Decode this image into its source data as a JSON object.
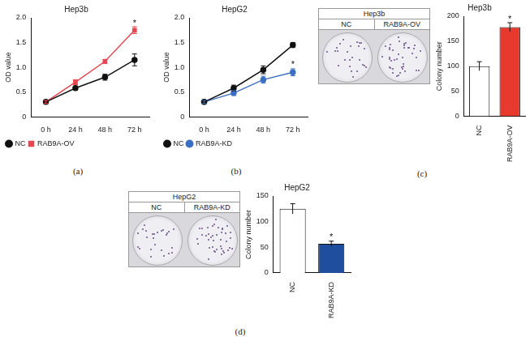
{
  "panel_labels": [
    "(a)",
    "(b)",
    "(c)",
    "(d)"
  ],
  "images": [
    {
      "title": "Hep3b",
      "labels": [
        "NC",
        "RAB9A-OV"
      ]
    },
    {
      "title": "HepG2",
      "labels": [
        "NC",
        "RAB9A-KD"
      ]
    }
  ],
  "chart_data": [
    {
      "type": "line",
      "title": "Hep3b",
      "y_label": "OD value",
      "categories": [
        "0 h",
        "24 h",
        "48 h",
        "72 h"
      ],
      "ylim": [
        0,
        2
      ],
      "yticks": [
        0,
        0.5,
        {
          "value": 1,
          "label": "1.0"
        },
        1.5,
        {
          "value": 2,
          "label": "2.0"
        }
      ],
      "grid": false,
      "legend": "bottom",
      "series": [
        {
          "name": "NC",
          "color": "#111111",
          "marker": "circle",
          "values": [
            0.3,
            0.58,
            0.8,
            1.15
          ],
          "errors": [
            0.03,
            0.04,
            0.06,
            0.12
          ]
        },
        {
          "name": "RAB9A-OV",
          "color": "#e8474f",
          "marker": "square",
          "values": [
            0.3,
            0.7,
            1.12,
            1.75
          ],
          "errors": [
            0.03,
            0.05,
            0.04,
            0.07
          ]
        }
      ],
      "annotations": [
        {
          "text": "*",
          "category": "72 h",
          "series": "RAB9A-OV"
        }
      ]
    },
    {
      "type": "line",
      "title": "HepG2",
      "y_label": "OD value",
      "categories": [
        "0 h",
        "24 h",
        "48 h",
        "72 h"
      ],
      "ylim": [
        0,
        2
      ],
      "yticks": [
        0,
        0.5,
        {
          "value": 1,
          "label": "1.0"
        },
        1.5,
        {
          "value": 2,
          "label": "2.0"
        }
      ],
      "grid": false,
      "legend": "bottom",
      "series": [
        {
          "name": "NC",
          "color": "#111111",
          "marker": "circle",
          "values": [
            0.3,
            0.58,
            0.95,
            1.45
          ],
          "errors": [
            0.03,
            0.06,
            0.08,
            0.05
          ]
        },
        {
          "name": "RAB9A-KD",
          "color": "#3b6fc4",
          "marker": "circle",
          "values": [
            0.3,
            0.48,
            0.75,
            0.9
          ],
          "errors": [
            0.03,
            0.05,
            0.07,
            0.07
          ]
        }
      ],
      "annotations": [
        {
          "text": "*",
          "category": "72 h",
          "series": "RAB9A-KD"
        }
      ]
    },
    {
      "type": "bar",
      "title": "Hep3b",
      "y_label": "Colony number",
      "categories": [
        "NC",
        "RAB9A-OV"
      ],
      "values": [
        100,
        178
      ],
      "errors": [
        9,
        9
      ],
      "colors": [
        "#ffffff",
        "#e8392f"
      ],
      "ylim": [
        0,
        200
      ],
      "yticks": [
        0,
        50,
        100,
        150,
        200
      ],
      "grid": false,
      "annotations": [
        {
          "text": "*",
          "category": "RAB9A-OV"
        }
      ]
    },
    {
      "type": "bar",
      "title": "HepG2",
      "y_label": "Colony number",
      "categories": [
        "NC",
        "RAB9A-KD"
      ],
      "values": [
        125,
        57
      ],
      "errors": [
        10,
        5
      ],
      "colors": [
        "#ffffff",
        "#1f4e9e"
      ],
      "ylim": [
        0,
        150
      ],
      "yticks": [
        0,
        50,
        100,
        150
      ],
      "grid": false,
      "annotations": [
        {
          "text": "*",
          "category": "RAB9A-KD"
        }
      ]
    }
  ]
}
